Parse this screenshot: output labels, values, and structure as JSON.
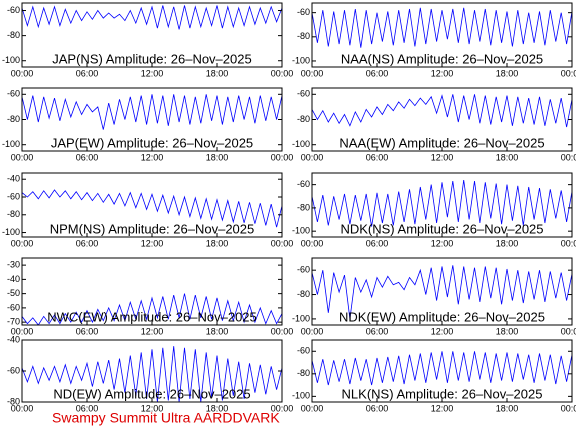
{
  "chart_data": [
    {
      "type": "line",
      "title": "JAP(NS) Amplitude: 26–Nov–2025",
      "color": "#0000ff",
      "xlim": [
        0,
        24
      ],
      "ylim": [
        -105,
        -54
      ],
      "xticks": [
        {
          "value": 0,
          "label": "00:00"
        },
        {
          "value": 6,
          "label": "06:00"
        },
        {
          "value": 12,
          "label": "12:00"
        },
        {
          "value": 18,
          "label": "18:00"
        },
        {
          "value": 24,
          "label": "00:00"
        }
      ],
      "yticks": [
        -60,
        -80,
        -100
      ],
      "x": [
        0,
        0.5,
        1,
        1.5,
        2,
        2.5,
        3,
        3.5,
        4,
        4.5,
        5,
        5.5,
        6,
        6.5,
        7,
        7.5,
        8,
        8.5,
        9,
        9.5,
        10,
        10.5,
        11,
        11.5,
        12,
        12.5,
        13,
        13.5,
        14,
        14.5,
        15,
        15.5,
        16,
        16.5,
        17,
        17.5,
        18,
        18.5,
        19,
        19.5,
        20,
        20.5,
        21,
        21.5,
        22,
        22.5,
        23,
        23.5,
        24
      ],
      "values": [
        -58,
        -72,
        -57,
        -73,
        -58,
        -71,
        -57,
        -72,
        -59,
        -70,
        -60,
        -68,
        -61,
        -67,
        -60,
        -66,
        -62,
        -66,
        -63,
        -68,
        -60,
        -70,
        -58,
        -71,
        -57,
        -74,
        -56,
        -73,
        -57,
        -75,
        -56,
        -74,
        -57,
        -73,
        -58,
        -72,
        -56,
        -74,
        -57,
        -73,
        -58,
        -72,
        -57,
        -71,
        -58,
        -70,
        -57,
        -69,
        -58
      ]
    },
    {
      "type": "line",
      "title": "NAA(NS) Amplitude: 26–Nov–2025",
      "color": "#0000ff",
      "xlim": [
        0,
        24
      ],
      "ylim": [
        -105,
        -52
      ],
      "xticks": [
        {
          "value": 0,
          "label": "00:00"
        },
        {
          "value": 6,
          "label": "06:00"
        },
        {
          "value": 12,
          "label": "12:00"
        },
        {
          "value": 18,
          "label": "18:00"
        },
        {
          "value": 24,
          "label": "00:00"
        }
      ],
      "yticks": [
        -60,
        -80,
        -100
      ],
      "x": [
        0,
        0.5,
        1,
        1.5,
        2,
        2.5,
        3,
        3.5,
        4,
        4.5,
        5,
        5.5,
        6,
        6.5,
        7,
        7.5,
        8,
        8.5,
        9,
        9.5,
        10,
        10.5,
        11,
        11.5,
        12,
        12.5,
        13,
        13.5,
        14,
        14.5,
        15,
        15.5,
        16,
        16.5,
        17,
        17.5,
        18,
        18.5,
        19,
        19.5,
        20,
        20.5,
        21,
        21.5,
        22,
        22.5,
        23,
        23.5,
        24
      ],
      "values": [
        -60,
        -85,
        -58,
        -88,
        -59,
        -86,
        -58,
        -87,
        -57,
        -89,
        -58,
        -86,
        -60,
        -84,
        -59,
        -87,
        -58,
        -85,
        -57,
        -88,
        -56,
        -86,
        -57,
        -84,
        -58,
        -82,
        -57,
        -85,
        -56,
        -86,
        -58,
        -84,
        -57,
        -87,
        -58,
        -85,
        -59,
        -88,
        -58,
        -86,
        -60,
        -85,
        -59,
        -87,
        -58,
        -84,
        -60,
        -86,
        -59
      ]
    },
    {
      "type": "line",
      "title": "JAP(EW) Amplitude: 26–Nov–2025",
      "color": "#0000ff",
      "xlim": [
        0,
        24
      ],
      "ylim": [
        -105,
        -55
      ],
      "xticks": [
        {
          "value": 0,
          "label": "00:00"
        },
        {
          "value": 6,
          "label": "06:00"
        },
        {
          "value": 12,
          "label": "12:00"
        },
        {
          "value": 18,
          "label": "18:00"
        },
        {
          "value": 24,
          "label": "00:00"
        }
      ],
      "yticks": [
        -60,
        -80,
        -100
      ],
      "x": [
        0,
        0.5,
        1,
        1.5,
        2,
        2.5,
        3,
        3.5,
        4,
        4.5,
        5,
        5.5,
        6,
        6.5,
        7,
        7.5,
        8,
        8.5,
        9,
        9.5,
        10,
        10.5,
        11,
        11.5,
        12,
        12.5,
        13,
        13.5,
        14,
        14.5,
        15,
        15.5,
        16,
        16.5,
        17,
        17.5,
        18,
        18.5,
        19,
        19.5,
        20,
        20.5,
        21,
        21.5,
        22,
        22.5,
        23,
        23.5,
        24
      ],
      "values": [
        -62,
        -80,
        -61,
        -82,
        -62,
        -79,
        -63,
        -81,
        -64,
        -78,
        -66,
        -76,
        -68,
        -74,
        -70,
        -88,
        -67,
        -84,
        -64,
        -80,
        -62,
        -82,
        -61,
        -84,
        -60,
        -83,
        -61,
        -85,
        -60,
        -82,
        -61,
        -84,
        -62,
        -83,
        -60,
        -81,
        -61,
        -84,
        -62,
        -82,
        -61,
        -80,
        -62,
        -83,
        -61,
        -81,
        -62,
        -80,
        -61
      ]
    },
    {
      "type": "line",
      "title": "NAA(EW) Amplitude: 26–Nov–2025",
      "color": "#0000ff",
      "xlim": [
        0,
        24
      ],
      "ylim": [
        -105,
        -55
      ],
      "xticks": [
        {
          "value": 0,
          "label": "00:00"
        },
        {
          "value": 6,
          "label": "06:00"
        },
        {
          "value": 12,
          "label": "12:00"
        },
        {
          "value": 18,
          "label": "18:00"
        },
        {
          "value": 24,
          "label": "00:00"
        }
      ],
      "yticks": [
        -60,
        -80,
        -100
      ],
      "x": [
        0,
        0.5,
        1,
        1.5,
        2,
        2.5,
        3,
        3.5,
        4,
        4.5,
        5,
        5.5,
        6,
        6.5,
        7,
        7.5,
        8,
        8.5,
        9,
        9.5,
        10,
        10.5,
        11,
        11.5,
        12,
        12.5,
        13,
        13.5,
        14,
        14.5,
        15,
        15.5,
        16,
        16.5,
        17,
        17.5,
        18,
        18.5,
        19,
        19.5,
        20,
        20.5,
        21,
        21.5,
        22,
        22.5,
        23,
        23.5,
        24
      ],
      "values": [
        -72,
        -80,
        -73,
        -82,
        -75,
        -83,
        -76,
        -85,
        -74,
        -82,
        -72,
        -78,
        -70,
        -76,
        -68,
        -73,
        -66,
        -71,
        -64,
        -69,
        -63,
        -68,
        -62,
        -75,
        -61,
        -78,
        -60,
        -82,
        -61,
        -80,
        -60,
        -83,
        -61,
        -84,
        -62,
        -82,
        -61,
        -85,
        -62,
        -83,
        -63,
        -84,
        -62,
        -85,
        -64,
        -83,
        -63,
        -86,
        -64
      ]
    },
    {
      "type": "line",
      "title": "NPM(NS) Amplitude: 26–Nov–2025",
      "color": "#0000ff",
      "xlim": [
        0,
        24
      ],
      "ylim": [
        -105,
        -33
      ],
      "xticks": [
        {
          "value": 0,
          "label": "00:00"
        },
        {
          "value": 6,
          "label": "06:00"
        },
        {
          "value": 12,
          "label": "12:00"
        },
        {
          "value": 18,
          "label": "18:00"
        },
        {
          "value": 24,
          "label": "00:00"
        }
      ],
      "yticks": [
        -40,
        -60,
        -80,
        -100
      ],
      "x": [
        0,
        0.5,
        1,
        1.5,
        2,
        2.5,
        3,
        3.5,
        4,
        4.5,
        5,
        5.5,
        6,
        6.5,
        7,
        7.5,
        8,
        8.5,
        9,
        9.5,
        10,
        10.5,
        11,
        11.5,
        12,
        12.5,
        13,
        13.5,
        14,
        14.5,
        15,
        15.5,
        16,
        16.5,
        17,
        17.5,
        18,
        18.5,
        19,
        19.5,
        20,
        20.5,
        21,
        21.5,
        22,
        22.5,
        23,
        23.5,
        24
      ],
      "values": [
        -55,
        -60,
        -54,
        -62,
        -53,
        -61,
        -52,
        -60,
        -53,
        -62,
        -54,
        -63,
        -55,
        -64,
        -56,
        -66,
        -57,
        -68,
        -56,
        -70,
        -55,
        -72,
        -56,
        -74,
        -57,
        -76,
        -58,
        -78,
        -59,
        -80,
        -60,
        -82,
        -61,
        -84,
        -62,
        -85,
        -63,
        -86,
        -64,
        -88,
        -65,
        -89,
        -66,
        -90,
        -67,
        -92,
        -68,
        -94,
        -70
      ]
    },
    {
      "type": "line",
      "title": "NDK(NS) Amplitude: 26–Nov–2025",
      "color": "#0000ff",
      "xlim": [
        0,
        24
      ],
      "ylim": [
        -105,
        -50
      ],
      "xticks": [
        {
          "value": 0,
          "label": "00:00"
        },
        {
          "value": 6,
          "label": "06:00"
        },
        {
          "value": 12,
          "label": "12:00"
        },
        {
          "value": 18,
          "label": "18:00"
        },
        {
          "value": 24,
          "label": "00:00"
        }
      ],
      "yticks": [
        -60,
        -80,
        -100
      ],
      "x": [
        0,
        0.5,
        1,
        1.5,
        2,
        2.5,
        3,
        3.5,
        4,
        4.5,
        5,
        5.5,
        6,
        6.5,
        7,
        7.5,
        8,
        8.5,
        9,
        9.5,
        10,
        10.5,
        11,
        11.5,
        12,
        12.5,
        13,
        13.5,
        14,
        14.5,
        15,
        15.5,
        16,
        16.5,
        17,
        17.5,
        18,
        18.5,
        19,
        19.5,
        20,
        20.5,
        21,
        21.5,
        22,
        22.5,
        23,
        23.5,
        24
      ],
      "values": [
        -70,
        -92,
        -69,
        -95,
        -70,
        -90,
        -68,
        -94,
        -69,
        -91,
        -68,
        -96,
        -67,
        -93,
        -68,
        -95,
        -66,
        -92,
        -64,
        -94,
        -62,
        -90,
        -60,
        -93,
        -58,
        -88,
        -57,
        -92,
        -56,
        -90,
        -57,
        -93,
        -58,
        -89,
        -59,
        -94,
        -60,
        -91,
        -61,
        -95,
        -62,
        -90,
        -63,
        -93,
        -64,
        -89,
        -65,
        -92,
        -66
      ]
    },
    {
      "type": "line",
      "title": "NWC(EW) Amplitude: 26–Nov–2025",
      "color": "#0000ff",
      "xlim": [
        0,
        24
      ],
      "ylim": [
        -72,
        -25
      ],
      "xticks": [
        {
          "value": 0,
          "label": "00:00"
        },
        {
          "value": 6,
          "label": "06:00"
        },
        {
          "value": 12,
          "label": "12:00"
        },
        {
          "value": 18,
          "label": "18:00"
        },
        {
          "value": 24,
          "label": "00:00"
        }
      ],
      "yticks": [
        -30,
        -40,
        -50,
        -60,
        -70
      ],
      "x": [
        0,
        0.5,
        1,
        1.5,
        2,
        2.5,
        3,
        3.5,
        4,
        4.5,
        5,
        5.5,
        6,
        6.5,
        7,
        7.5,
        8,
        8.5,
        9,
        9.5,
        10,
        10.5,
        11,
        11.5,
        12,
        12.5,
        13,
        13.5,
        14,
        14.5,
        15,
        15.5,
        16,
        16.5,
        17,
        17.5,
        18,
        18.5,
        19,
        19.5,
        20,
        20.5,
        21,
        21.5,
        22,
        22.5,
        23,
        23.5,
        24
      ],
      "values": [
        -66,
        -71,
        -67,
        -72,
        -66,
        -71,
        -65,
        -71,
        -64,
        -70,
        -63,
        -70,
        -62,
        -70,
        -61,
        -69,
        -60,
        -69,
        -58,
        -69,
        -56,
        -68,
        -55,
        -68,
        -53,
        -67,
        -52,
        -68,
        -51,
        -67,
        -50,
        -68,
        -51,
        -67,
        -52,
        -68,
        -53,
        -69,
        -55,
        -69,
        -56,
        -70,
        -58,
        -70,
        -60,
        -71,
        -62,
        -71,
        -64
      ]
    },
    {
      "type": "line",
      "title": "NDK(EW) Amplitude: 26–Nov–2025",
      "color": "#0000ff",
      "xlim": [
        0,
        24
      ],
      "ylim": [
        -105,
        -50
      ],
      "xticks": [
        {
          "value": 0,
          "label": "00:00"
        },
        {
          "value": 6,
          "label": "06:00"
        },
        {
          "value": 12,
          "label": "12:00"
        },
        {
          "value": 18,
          "label": "18:00"
        },
        {
          "value": 24,
          "label": "00:00"
        }
      ],
      "yticks": [
        -60,
        -80,
        -100
      ],
      "x": [
        0,
        0.5,
        1,
        1.5,
        2,
        2.5,
        3,
        3.5,
        4,
        4.5,
        5,
        5.5,
        6,
        6.5,
        7,
        7.5,
        8,
        8.5,
        9,
        9.5,
        10,
        10.5,
        11,
        11.5,
        12,
        12.5,
        13,
        13.5,
        14,
        14.5,
        15,
        15.5,
        16,
        16.5,
        17,
        17.5,
        18,
        18.5,
        19,
        19.5,
        20,
        20.5,
        21,
        21.5,
        22,
        22.5,
        23,
        23.5,
        24
      ],
      "values": [
        -62,
        -80,
        -60,
        -95,
        -62,
        -78,
        -64,
        -100,
        -66,
        -78,
        -68,
        -82,
        -66,
        -74,
        -65,
        -72,
        -70,
        -76,
        -66,
        -72,
        -60,
        -80,
        -58,
        -85,
        -57,
        -82,
        -56,
        -88,
        -57,
        -84,
        -58,
        -86,
        -57,
        -83,
        -58,
        -88,
        -59,
        -85,
        -60,
        -87,
        -61,
        -84,
        -60,
        -86,
        -61,
        -83,
        -62,
        -85,
        -63
      ]
    },
    {
      "type": "line",
      "title": "ND(EW) Amplitude: 26–Nov–2025",
      "color": "#0000ff",
      "xlim": [
        0,
        24
      ],
      "ylim": [
        -80,
        -40
      ],
      "xticks": [
        {
          "value": 0,
          "label": "00:00"
        },
        {
          "value": 6,
          "label": "06:00"
        },
        {
          "value": 12,
          "label": "12:00"
        },
        {
          "value": 18,
          "label": "18:00"
        },
        {
          "value": 24,
          "label": "00:00"
        }
      ],
      "yticks": [
        -40,
        -60,
        -80
      ],
      "x": [
        0,
        0.5,
        1,
        1.5,
        2,
        2.5,
        3,
        3.5,
        4,
        4.5,
        5,
        5.5,
        6,
        6.5,
        7,
        7.5,
        8,
        8.5,
        9,
        9.5,
        10,
        10.5,
        11,
        11.5,
        12,
        12.5,
        13,
        13.5,
        14,
        14.5,
        15,
        15.5,
        16,
        16.5,
        17,
        17.5,
        18,
        18.5,
        19,
        19.5,
        20,
        20.5,
        21,
        21.5,
        22,
        22.5,
        23,
        23.5,
        24
      ],
      "values": [
        -58,
        -67,
        -57,
        -68,
        -58,
        -66,
        -57,
        -67,
        -56,
        -68,
        -57,
        -66,
        -55,
        -70,
        -54,
        -68,
        -53,
        -72,
        -52,
        -74,
        -50,
        -76,
        -48,
        -78,
        -46,
        -80,
        -45,
        -79,
        -44,
        -80,
        -45,
        -78,
        -46,
        -80,
        -48,
        -77,
        -50,
        -79,
        -52,
        -76,
        -54,
        -78,
        -55,
        -74,
        -56,
        -75,
        -57,
        -72,
        -58
      ]
    },
    {
      "type": "line",
      "title": "NLK(NS) Amplitude: 26–Nov–2025",
      "color": "#0000ff",
      "xlim": [
        0,
        24
      ],
      "ylim": [
        -105,
        -50
      ],
      "xticks": [
        {
          "value": 0,
          "label": "00:00"
        },
        {
          "value": 6,
          "label": "06:00"
        },
        {
          "value": 12,
          "label": "12:00"
        },
        {
          "value": 18,
          "label": "18:00"
        },
        {
          "value": 24,
          "label": "00:00"
        }
      ],
      "yticks": [
        -60,
        -80,
        -100
      ],
      "x": [
        0,
        0.5,
        1,
        1.5,
        2,
        2.5,
        3,
        3.5,
        4,
        4.5,
        5,
        5.5,
        6,
        6.5,
        7,
        7.5,
        8,
        8.5,
        9,
        9.5,
        10,
        10.5,
        11,
        11.5,
        12,
        12.5,
        13,
        13.5,
        14,
        14.5,
        15,
        15.5,
        16,
        16.5,
        17,
        17.5,
        18,
        18.5,
        19,
        19.5,
        20,
        20.5,
        21,
        21.5,
        22,
        22.5,
        23,
        23.5,
        24
      ],
      "values": [
        -68,
        -88,
        -67,
        -90,
        -68,
        -87,
        -67,
        -89,
        -66,
        -86,
        -67,
        -90,
        -66,
        -88,
        -65,
        -87,
        -64,
        -89,
        -63,
        -86,
        -62,
        -88,
        -61,
        -85,
        -60,
        -88,
        -60,
        -86,
        -61,
        -87,
        -60,
        -85,
        -61,
        -88,
        -62,
        -86,
        -61,
        -87,
        -62,
        -85,
        -63,
        -88,
        -62,
        -86,
        -63,
        -89,
        -64,
        -87,
        -63
      ]
    }
  ],
  "caption": "Swampy Summit Ultra AARDDVARK"
}
